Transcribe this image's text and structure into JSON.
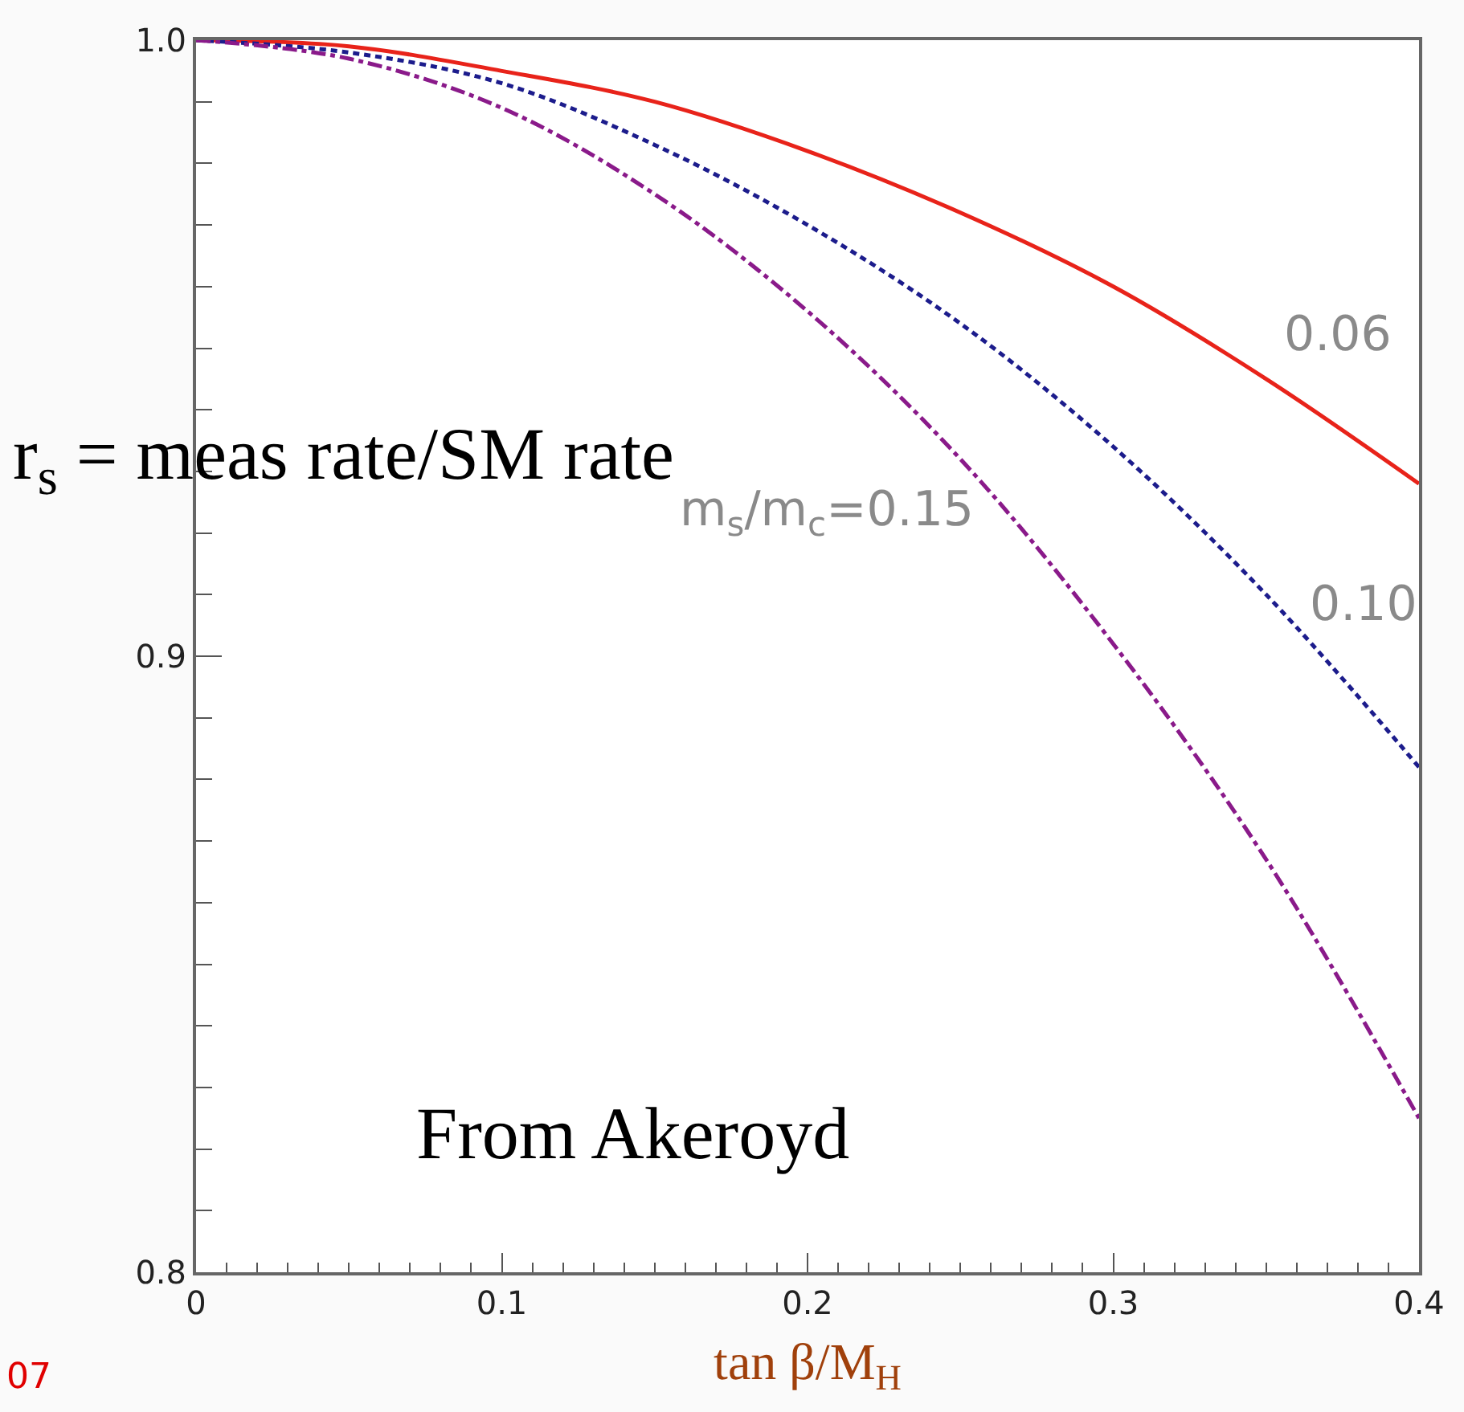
{
  "chart_data": {
    "type": "line",
    "xlabel": "tan β/M$_{H}$",
    "ylabel": "r$_{s}$ = meas rate/SM rate",
    "x": [
      0,
      0.05,
      0.1,
      0.15,
      0.2,
      0.25,
      0.3,
      0.35,
      0.4
    ],
    "series": [
      {
        "name": "0.06",
        "color": "#e8231a",
        "line_style": "solid",
        "values": [
          1.0,
          0.999,
          0.995,
          0.99,
          0.982,
          0.972,
          0.96,
          0.945,
          0.928
        ]
      },
      {
        "name": "0.10",
        "color": "#1c1c8c",
        "line_style": "dashed",
        "values": [
          1.0,
          0.998,
          0.993,
          0.983,
          0.97,
          0.954,
          0.934,
          0.91,
          0.882
        ]
      },
      {
        "name": "m$_{s}$/m$_{c}$=0.15",
        "color": "#8a1a8a",
        "line_style": "dotted",
        "values": [
          1.0,
          0.997,
          0.989,
          0.975,
          0.956,
          0.932,
          0.902,
          0.867,
          0.825
        ]
      }
    ],
    "xlim": [
      0,
      0.4
    ],
    "ylim": [
      0.8,
      1.0
    ],
    "xticks": [
      0,
      0.1,
      0.2,
      0.3,
      0.4
    ],
    "yticks": [
      0.8,
      0.9,
      {
        "value": 1.0,
        "label": "1.0"
      }
    ],
    "legend": false,
    "marker": "none",
    "annotations": [
      "From Akeroyd",
      "07"
    ]
  }
}
